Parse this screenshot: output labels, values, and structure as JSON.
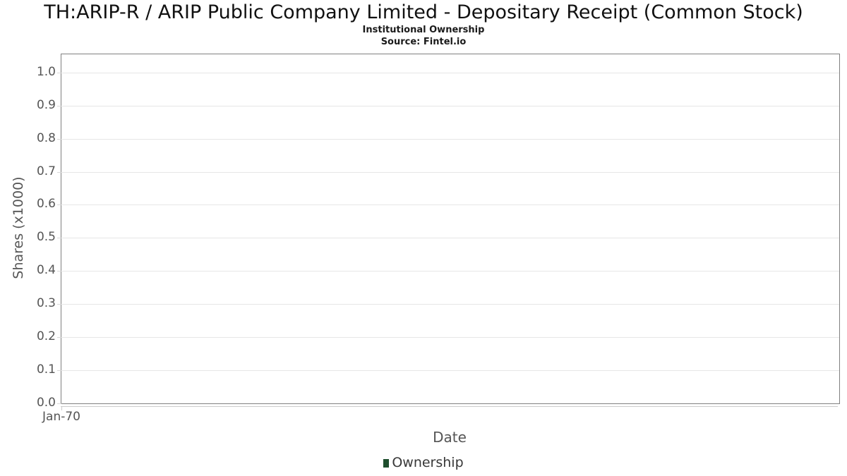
{
  "title": "TH:ARIP-R / ARIP Public Company Limited - Depositary Receipt (Common Stock)",
  "subtitle": "Institutional Ownership",
  "source": "Source: Fintel.io",
  "chart_data": {
    "type": "bar",
    "title": "TH:ARIP-R / ARIP Public Company Limited - Depositary Receipt (Common Stock)",
    "subtitle": "Institutional Ownership",
    "source": "Source: Fintel.io",
    "xlabel": "Date",
    "ylabel": "Shares (x1000)",
    "x_ticks": [
      "Jan-70"
    ],
    "y_ticks": [
      "0.0",
      "0.1",
      "0.2",
      "0.3",
      "0.4",
      "0.5",
      "0.6",
      "0.7",
      "0.8",
      "0.9",
      "1.0"
    ],
    "ylim": [
      0,
      1.055
    ],
    "grid": true,
    "legend_position": "bottom",
    "series": [
      {
        "name": "Ownership",
        "color": "#1e4e2d",
        "values": []
      }
    ]
  },
  "colors": {
    "plot_border": "#808080",
    "gridline": "#e6e6e6",
    "axis_line": "#cccccc",
    "tick_label": "#555555",
    "legend_green": "#1e4e2d"
  }
}
